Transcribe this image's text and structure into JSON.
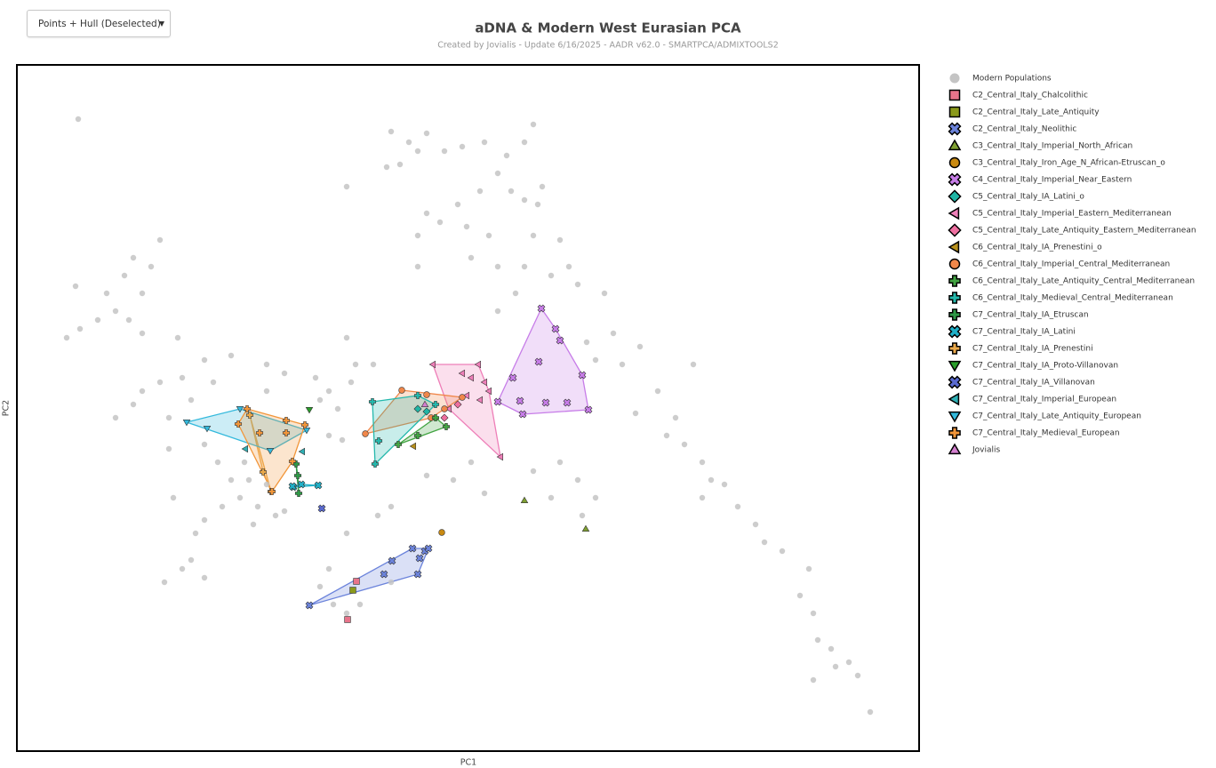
{
  "controls": {
    "view_mode": "Points + Hull (Deselected)"
  },
  "chart_data": {
    "type": "scatter",
    "title": "aDNA & Modern West Eurasian PCA",
    "subtitle": "Created by Jovialis - Update 6/16/2025 - AADR v62.0 - SMARTPCA/ADMIXTOOLS2",
    "x_label": "PC1",
    "y_label": "PC2",
    "xlim": [
      0,
      1015
    ],
    "ylim": [
      0,
      772
    ],
    "hull_opacity": 0.25,
    "series": [
      {
        "name": "Modern Populations",
        "color": "#c4c4c4",
        "marker": "circle",
        "hull": false,
        "x": [
          69,
          421,
          441,
          451,
          431,
          416,
          461,
          481,
          501,
          526,
          551,
          571,
          581,
          541,
          556,
          571,
          591,
          586,
          521,
          496,
          476,
          451,
          461,
          506,
          531,
          581,
          611,
          621,
          601,
          631,
          661,
          451,
          511,
          541,
          571,
          131,
          121,
          141,
          111,
          126,
          141,
          91,
          71,
          56,
          101,
          151,
          161,
          66,
          181,
          211,
          241,
          186,
          161,
          141,
          131,
          111,
          171,
          196,
          221,
          281,
          301,
          336,
          351,
          361,
          376,
          381,
          341,
          366,
          351,
          281,
          261,
          251,
          271,
          291,
          281,
          266,
          301,
          256,
          241,
          231,
          211,
          201,
          196,
          186,
          211,
          166,
          176,
          211,
          226,
          171,
          701,
          671,
          641,
          651,
          681,
          721,
          741,
          731,
          751,
          771,
          781,
          796,
          771,
          811,
          831,
          841,
          861,
          891,
          881,
          896,
          901,
          916,
          936,
          946,
          921,
          960,
          896,
          696,
          761,
          611,
          601,
          631,
          651,
          636,
          581,
          511,
          491,
          526,
          461,
          421,
          406,
          371,
          351,
          341,
          356,
          371,
          386,
          421,
          561,
          541,
          371,
          371,
          401
        ],
        "values": [
          711,
          697,
          685,
          675,
          660,
          657,
          695,
          675,
          680,
          685,
          670,
          685,
          705,
          650,
          630,
          620,
          635,
          615,
          630,
          615,
          595,
          580,
          605,
          590,
          580,
          580,
          575,
          545,
          535,
          525,
          515,
          545,
          555,
          545,
          545,
          555,
          535,
          515,
          495,
          485,
          470,
          485,
          475,
          465,
          515,
          545,
          575,
          523,
          465,
          440,
          445,
          420,
          415,
          405,
          390,
          375,
          375,
          395,
          415,
          435,
          425,
          420,
          405,
          385,
          415,
          435,
          395,
          350,
          355,
          405,
          305,
          285,
          275,
          265,
          300,
          255,
          270,
          325,
          305,
          275,
          260,
          245,
          215,
          205,
          195,
          190,
          285,
          345,
          325,
          340,
          455,
          470,
          460,
          440,
          435,
          405,
          375,
          355,
          345,
          325,
          305,
          300,
          285,
          275,
          255,
          235,
          225,
          205,
          175,
          155,
          125,
          115,
          100,
          85,
          95,
          44,
          80,
          380,
          435,
          325,
          285,
          305,
          285,
          265,
          315,
          325,
          305,
          290,
          310,
          275,
          265,
          245,
          205,
          185,
          165,
          155,
          165,
          190,
          515,
          495,
          635,
          465,
          435
        ]
      },
      {
        "name": "C2_Central_Italy_Chalcolithic",
        "color": "#e8738a",
        "marker": "square",
        "hull": true,
        "x": [
          382,
          372
        ],
        "values": [
          191,
          148
        ]
      },
      {
        "name": "C2_Central_Italy_Late_Antiquity",
        "color": "#8b9a1b",
        "marker": "square",
        "hull": true,
        "x": [
          378
        ],
        "values": [
          181
        ]
      },
      {
        "name": "C2_Central_Italy_Neolithic",
        "color": "#6b83db",
        "marker": "x",
        "hull": true,
        "x": [
          329,
          413,
          422,
          445,
          451,
          453,
          459,
          463
        ],
        "values": [
          164,
          199,
          214,
          228,
          199,
          217,
          225,
          228
        ]
      },
      {
        "name": "C3_Central_Italy_Imperial_North_African",
        "color": "#7fa032",
        "marker": "triangle-up",
        "hull": true,
        "x": [
          571,
          640
        ],
        "values": [
          282,
          250
        ]
      },
      {
        "name": "C3_Central_Italy_Iron_Age_N_African-Etruscan_o",
        "color": "#c98a12",
        "marker": "circle",
        "hull": true,
        "x": [
          478
        ],
        "values": [
          246
        ]
      },
      {
        "name": "C4_Central_Italy_Imperial_Near_Eastern",
        "color": "#c77de8",
        "marker": "x",
        "hull": true,
        "x": [
          590,
          606,
          611,
          587,
          636,
          558,
          643,
          595,
          619,
          569,
          541,
          566
        ],
        "values": [
          498,
          475,
          462,
          438,
          423,
          420,
          384,
          392,
          392,
          379,
          393,
          394
        ]
      },
      {
        "name": "C5_Central_Italy_IA_Latini_o",
        "color": "#1fb5a5",
        "marker": "diamond",
        "hull": true,
        "x": [
          451,
          461
        ],
        "values": [
          385,
          382
        ]
      },
      {
        "name": "C5_Central_Italy_Imperial_Eastern_Mediterranean",
        "color": "#ee7fb8",
        "marker": "triangle-left",
        "hull": true,
        "x": [
          468,
          519,
          501,
          511,
          526,
          531,
          506,
          486,
          521,
          544
        ],
        "values": [
          435,
          435,
          425,
          420,
          415,
          405,
          400,
          385,
          395,
          331
        ]
      },
      {
        "name": "C5_Central_Italy_Late_Antiquity_Eastern_Mediterranean",
        "color": "#ef6fa0",
        "marker": "diamond",
        "hull": true,
        "x": [
          481,
          496
        ],
        "values": [
          375,
          390
        ]
      },
      {
        "name": "C6_Central_Italy_IA_Prenestini_o",
        "color": "#b8901c",
        "marker": "triangle-left",
        "hull": true,
        "x": [
          446
        ],
        "values": [
          343
        ]
      },
      {
        "name": "C6_Central_Italy_Imperial_Central_Mediterranean",
        "color": "#f0874a",
        "marker": "circle",
        "hull": true,
        "x": [
          392,
          433,
          461,
          501,
          466,
          481
        ],
        "values": [
          357,
          406,
          401,
          398,
          375,
          385
        ]
      },
      {
        "name": "C6_Central_Italy_Late_Antiquity_Central_Mediterranean",
        "color": "#42a442",
        "marker": "plus",
        "hull": true,
        "x": [
          429,
          451,
          483,
          471
        ],
        "values": [
          345,
          355,
          365,
          375
        ]
      },
      {
        "name": "C6_Central_Italy_Medieval_Central_Mediterranean",
        "color": "#24b8ac",
        "marker": "plus",
        "hull": true,
        "x": [
          400,
          403,
          407,
          451,
          471
        ],
        "values": [
          393,
          323,
          349,
          400,
          390
        ]
      },
      {
        "name": "C7_Central_Italy_IA_Etruscan",
        "color": "#2e9a46",
        "marker": "plus",
        "hull": true,
        "x": [
          314,
          317,
          316
        ],
        "values": [
          323,
          290,
          310
        ]
      },
      {
        "name": "C7_Central_Italy_IA_Latini",
        "color": "#1fb0c8",
        "marker": "x",
        "hull": true,
        "x": [
          311,
          320,
          339,
          310
        ],
        "values": [
          297,
          300,
          299,
          298
        ]
      },
      {
        "name": "C7_Central_Italy_IA_Prenestini",
        "color": "#eba94a",
        "marker": "plus",
        "hull": true,
        "x": [
          277,
          286,
          262
        ],
        "values": [
          314,
          292,
          378
        ]
      },
      {
        "name": "C7_Central_Italy_IA_Proto-Villanovan",
        "color": "#2a9d2a",
        "marker": "triangle-down",
        "hull": true,
        "x": [
          329
        ],
        "values": [
          384
        ]
      },
      {
        "name": "C7_Central_Italy_IA_Villanovan",
        "color": "#5a6ad0",
        "marker": "x",
        "hull": true,
        "x": [
          343
        ],
        "values": [
          273
        ]
      },
      {
        "name": "C7_Central_Italy_Imperial_European",
        "color": "#2fb0b5",
        "marker": "triangle-left",
        "hull": true,
        "x": [
          257,
          321
        ],
        "values": [
          340,
          337
        ]
      },
      {
        "name": "C7_Central_Italy_Late_Antiquity_European",
        "color": "#33b9dc",
        "marker": "triangle-down",
        "hull": true,
        "x": [
          191,
          251,
          326,
          285,
          214
        ],
        "values": [
          370,
          385,
          361,
          338,
          363
        ]
      },
      {
        "name": "C7_Central_Italy_Medieval_European",
        "color": "#f2963a",
        "marker": "plus",
        "hull": true,
        "x": [
          259,
          303,
          324,
          249,
          273,
          303,
          310,
          287
        ],
        "values": [
          385,
          372,
          367,
          368,
          358,
          358,
          326,
          292
        ]
      },
      {
        "name": "Jovialis",
        "color": "#d47fd0",
        "marker": "triangle-up",
        "hull": true,
        "x": [
          459
        ],
        "values": [
          390
        ]
      }
    ]
  }
}
